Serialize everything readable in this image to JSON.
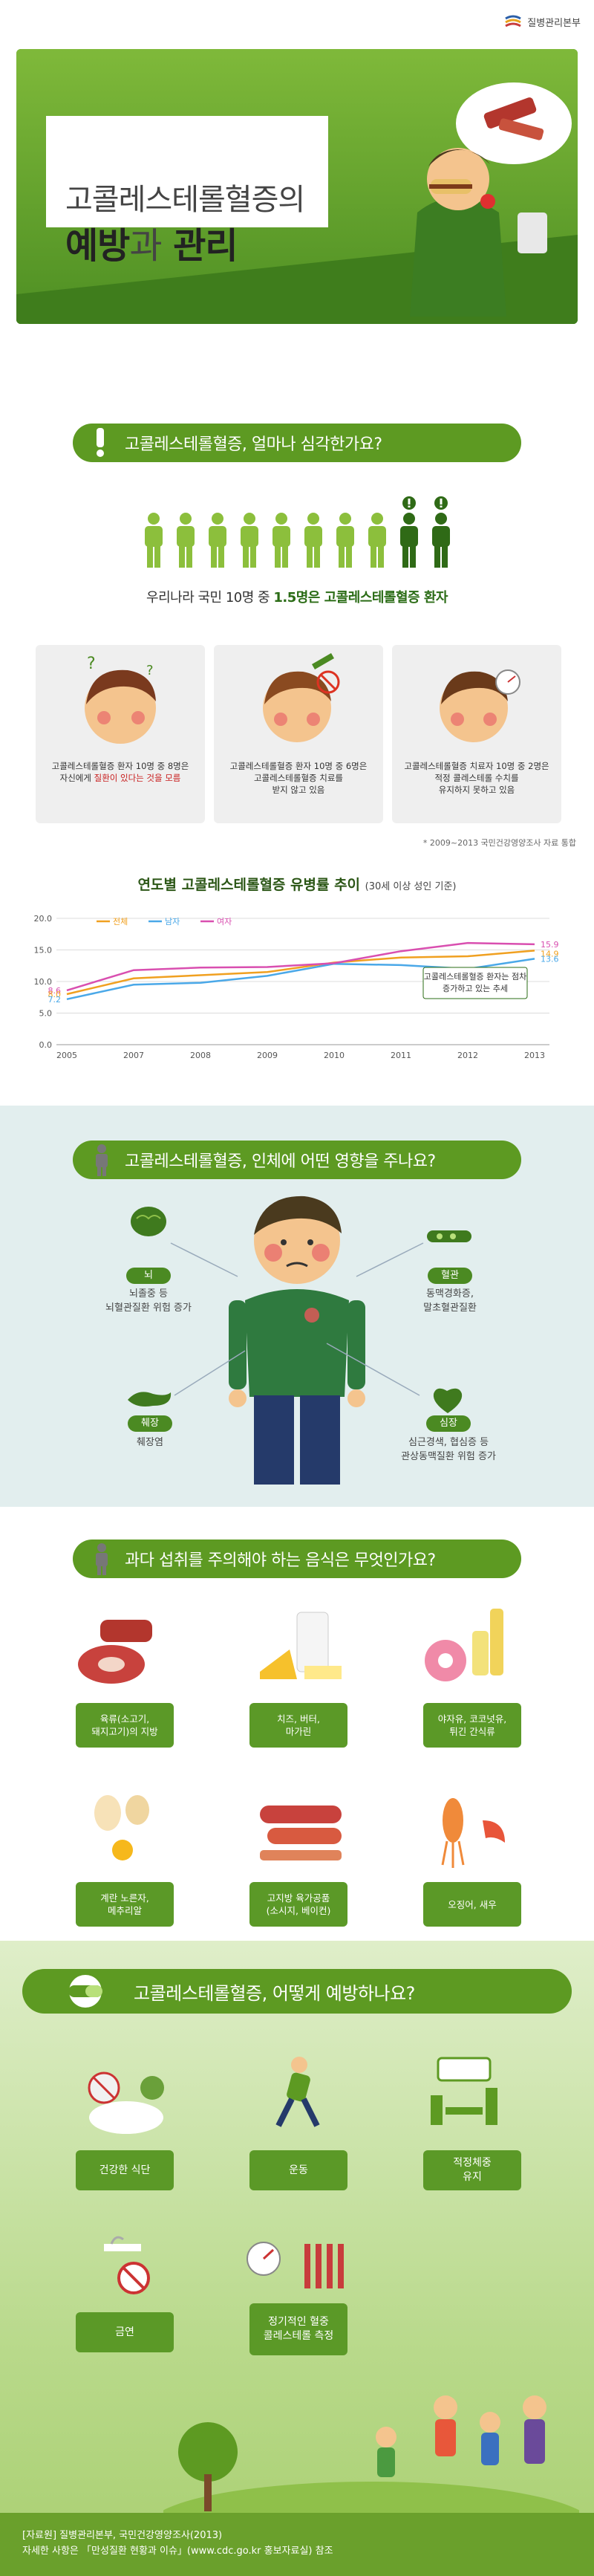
{
  "org": {
    "name": "질병관리본부"
  },
  "hero": {
    "title_line1": "고콜레스테롤혈증의",
    "title_bold1": "예방",
    "title_light": "과",
    "title_bold2": "관리"
  },
  "section1": {
    "banner": "고콜레스테롤혈증, 얼마나 심각한가요?",
    "stat_prefix": "우리나라 국민 10명 중",
    "stat_highlight": "1.5명은 고콜레스테롤혈증 환자",
    "cards": [
      {
        "line1": "고콜레스테롤혈증 환자 10명 중 8명은",
        "line2a": "자신에게 ",
        "line2r": "질환이 있다는 것을 모름"
      },
      {
        "line1": "고콜레스테롤혈증 환자 10명 중 6명은",
        "line2a": "고콜레스테롤혈증 치료를",
        "line2r": "",
        "line3": "받지 않고 있음"
      },
      {
        "line1": "고콜레스테롤혈증 치료자 10명 중 2명은",
        "line2a": "적정 콜레스테롤 수치를",
        "line2r": "",
        "line3": "유지하지 못하고 있음"
      }
    ],
    "source": "* 2009~2013 국민건강영양조사 자료 통합"
  },
  "chart_data": {
    "type": "line",
    "title": "연도별 고콜레스테롤혈증 유병률 추이",
    "subtitle": "(30세 이상 성인 기준)",
    "x": [
      "2005",
      "2007",
      "2008",
      "2009",
      "2010",
      "2011",
      "2012",
      "2013"
    ],
    "ylim": [
      0,
      20
    ],
    "yticks": [
      "0.0",
      "5.0",
      "10.0",
      "15.0",
      "20.0"
    ],
    "series": [
      {
        "name": "전체",
        "color": "#f0a020",
        "values": [
          8.0,
          10.5,
          11.0,
          11.5,
          13.0,
          13.8,
          14.0,
          14.9
        ]
      },
      {
        "name": "남자",
        "color": "#4aa8e8",
        "values": [
          7.2,
          9.5,
          9.8,
          10.9,
          12.8,
          12.6,
          12.0,
          13.6
        ]
      },
      {
        "name": "여자",
        "color": "#d94fb0",
        "values": [
          8.6,
          11.8,
          12.2,
          12.3,
          12.9,
          14.8,
          16.1,
          15.9
        ]
      }
    ],
    "start_labels": [
      "8.6",
      "8.0",
      "7.2"
    ],
    "end_labels": [
      "15.9",
      "14.9",
      "13.6"
    ],
    "annotation": "고콜레스테롤혈증 환자는 점차 증가하고 있는 추세"
  },
  "section2": {
    "banner": "고콜레스테롤혈증, 인체에 어떤 영향을 주나요?",
    "organs": [
      {
        "label": "뇌",
        "desc1": "뇌졸중 등",
        "desc2": "뇌혈관질환 위험 증가"
      },
      {
        "label": "혈관",
        "desc1": "동맥경화증,",
        "desc2": "말초혈관질환"
      },
      {
        "label": "췌장",
        "desc1": "췌장염",
        "desc2": ""
      },
      {
        "label": "심장",
        "desc1": "심근경색, 협심증 등",
        "desc2": "관상동맥질환 위험 증가"
      }
    ]
  },
  "section3": {
    "banner": "과다 섭취를 주의해야 하는 음식은 무엇인가요?",
    "foods": [
      {
        "line1": "육류(소고기,",
        "line2": "돼지고기)의 지방"
      },
      {
        "line1": "치즈, 버터,",
        "line2": "마가린"
      },
      {
        "line1": "야자유, 코코넛유,",
        "line2": "튀긴 간식류"
      },
      {
        "line1": "계란 노른자,",
        "line2": "메추리알"
      },
      {
        "line1": "고지방 육가공품",
        "line2": "(소시지, 베이컨)"
      },
      {
        "line1": "오징어, 새우",
        "line2": ""
      }
    ]
  },
  "section4": {
    "banner": "고콜레스테롤혈증, 어떻게 예방하나요?",
    "items": [
      {
        "line1": "건강한 식단",
        "line2": ""
      },
      {
        "line1": "운동",
        "line2": ""
      },
      {
        "line1": "적정체중",
        "line2": "유지"
      },
      {
        "line1": "금연",
        "line2": ""
      },
      {
        "line1": "정기적인 혈중",
        "line2": "콜레스테롤 측정"
      }
    ]
  },
  "footer": {
    "line1": "[자료원] 질병관리본부, 국민건강영양조사(2013)",
    "line2": "자세한 사항은 「만성질환 현황과 이슈」(www.cdc.go.kr 홍보자료실) 참조"
  },
  "colors": {
    "green": "#5d9a22",
    "dark_green": "#3d7218",
    "skin": "#f4c48e",
    "red": "#c81e1e"
  }
}
